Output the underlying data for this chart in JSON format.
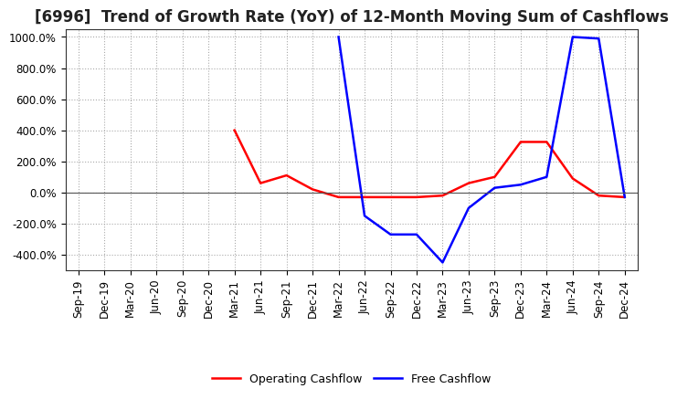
{
  "title": "[6996]  Trend of Growth Rate (YoY) of 12-Month Moving Sum of Cashflows",
  "x_labels": [
    "Sep-19",
    "Dec-19",
    "Mar-20",
    "Jun-20",
    "Sep-20",
    "Dec-20",
    "Mar-21",
    "Jun-21",
    "Sep-21",
    "Dec-21",
    "Mar-22",
    "Jun-22",
    "Sep-22",
    "Dec-22",
    "Mar-23",
    "Jun-23",
    "Sep-23",
    "Dec-23",
    "Mar-24",
    "Jun-24",
    "Sep-24",
    "Dec-24"
  ],
  "ylim": [
    -500,
    1050
  ],
  "yticks": [
    -400,
    -200,
    0,
    200,
    400,
    600,
    800,
    1000
  ],
  "operating_cashflow": [
    null,
    null,
    null,
    null,
    null,
    null,
    400,
    60,
    110,
    20,
    -30,
    -30,
    -30,
    -30,
    -20,
    60,
    100,
    325,
    325,
    90,
    -20,
    -30
  ],
  "free_cashflow": [
    null,
    null,
    null,
    null,
    null,
    null,
    null,
    null,
    null,
    null,
    1000,
    -150,
    -270,
    -270,
    -450,
    -100,
    30,
    50,
    100,
    1000,
    990,
    -30
  ],
  "operating_color": "#ff0000",
  "free_color": "#0000ff",
  "background_color": "#ffffff",
  "grid_color": "#aaaaaa",
  "legend_op": "Operating Cashflow",
  "legend_free": "Free Cashflow",
  "title_fontsize": 12,
  "tick_fontsize": 8.5,
  "legend_fontsize": 9
}
